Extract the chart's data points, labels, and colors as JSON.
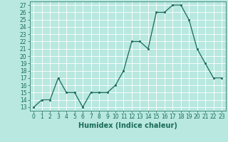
{
  "x": [
    0,
    1,
    2,
    3,
    4,
    5,
    6,
    7,
    8,
    9,
    10,
    11,
    12,
    13,
    14,
    15,
    16,
    17,
    18,
    19,
    20,
    21,
    22,
    23
  ],
  "y": [
    13,
    14,
    14,
    17,
    15,
    15,
    13,
    15,
    15,
    15,
    16,
    18,
    22,
    22,
    21,
    26,
    26,
    27,
    27,
    25,
    21,
    19,
    17,
    17
  ],
  "xlim": [
    -0.5,
    23.5
  ],
  "ylim": [
    12.5,
    27.5
  ],
  "yticks": [
    13,
    14,
    15,
    16,
    17,
    18,
    19,
    20,
    21,
    22,
    23,
    24,
    25,
    26,
    27
  ],
  "xticks": [
    0,
    1,
    2,
    3,
    4,
    5,
    6,
    7,
    8,
    9,
    10,
    11,
    12,
    13,
    14,
    15,
    16,
    17,
    18,
    19,
    20,
    21,
    22,
    23
  ],
  "xlabel": "Humidex (Indice chaleur)",
  "line_color": "#1a6b5a",
  "bg_color": "#b8e8e0",
  "grid_color": "#ffffff",
  "tick_label_fontsize": 5.5,
  "xlabel_fontsize": 7,
  "marker_size": 2.0,
  "linewidth": 0.9
}
